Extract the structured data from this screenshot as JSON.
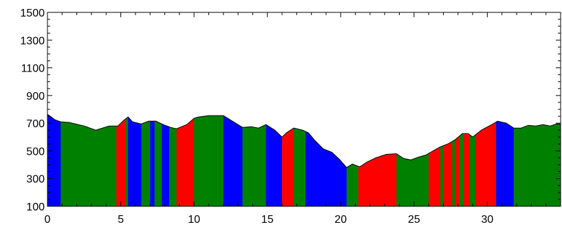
{
  "chart_data": {
    "type": "area",
    "title": "",
    "xlabel": "",
    "ylabel": "",
    "xlim": [
      0,
      35
    ],
    "ylim": [
      100,
      1500
    ],
    "x_ticks": [
      0,
      5,
      10,
      15,
      20,
      25,
      30
    ],
    "y_ticks": [
      100,
      300,
      500,
      700,
      900,
      1100,
      1300,
      1500
    ],
    "grid": false,
    "legend": "none",
    "colors": {
      "red": "#ff0000",
      "green": "#008000",
      "blue": "#0000ff"
    },
    "profile": {
      "x": [
        0,
        0.2,
        0.5,
        0.9,
        1.5,
        2.5,
        3.3,
        4.2,
        4.8,
        5.2,
        5.5,
        5.8,
        6.4,
        6.9,
        7.4,
        7.9,
        8.4,
        8.8,
        9.5,
        10.0,
        10.3,
        11.0,
        12.0,
        12.6,
        13.3,
        13.9,
        14.4,
        14.9,
        15.5,
        16.0,
        16.3,
        16.8,
        17.4,
        17.8,
        18.2,
        18.8,
        19.4,
        19.9,
        20.4,
        20.8,
        21.3,
        21.8,
        22.4,
        23.1,
        23.8,
        24.3,
        24.8,
        25.3,
        25.8,
        26.3,
        26.8,
        27.3,
        27.8,
        28.3,
        28.7,
        29.0,
        29.6,
        30.3,
        30.7,
        31.3,
        31.8,
        32.3,
        32.8,
        33.3,
        33.8,
        34.3,
        34.7,
        35.0
      ],
      "y": [
        765,
        750,
        725,
        710,
        705,
        680,
        650,
        680,
        680,
        720,
        745,
        710,
        695,
        715,
        715,
        690,
        670,
        660,
        690,
        735,
        745,
        755,
        755,
        715,
        670,
        675,
        665,
        690,
        650,
        600,
        630,
        665,
        650,
        630,
        580,
        515,
        490,
        440,
        380,
        405,
        385,
        420,
        450,
        475,
        480,
        445,
        435,
        455,
        470,
        500,
        530,
        550,
        580,
        625,
        625,
        600,
        650,
        690,
        715,
        700,
        665,
        665,
        685,
        680,
        690,
        680,
        695,
        695
      ]
    },
    "segments": [
      {
        "from": 0.0,
        "to": 0.9,
        "color": "blue"
      },
      {
        "from": 0.9,
        "to": 4.7,
        "color": "green"
      },
      {
        "from": 4.7,
        "to": 5.3,
        "color": "red"
      },
      {
        "from": 5.3,
        "to": 5.5,
        "color": "green"
      },
      {
        "from": 5.5,
        "to": 6.4,
        "color": "blue"
      },
      {
        "from": 6.4,
        "to": 7.0,
        "color": "green"
      },
      {
        "from": 7.0,
        "to": 7.3,
        "color": "blue"
      },
      {
        "from": 7.3,
        "to": 7.8,
        "color": "green"
      },
      {
        "from": 7.8,
        "to": 8.3,
        "color": "blue"
      },
      {
        "from": 8.3,
        "to": 8.8,
        "color": "green"
      },
      {
        "from": 8.8,
        "to": 10.0,
        "color": "red"
      },
      {
        "from": 10.0,
        "to": 12.0,
        "color": "green"
      },
      {
        "from": 12.0,
        "to": 13.3,
        "color": "blue"
      },
      {
        "from": 13.3,
        "to": 14.9,
        "color": "green"
      },
      {
        "from": 14.9,
        "to": 16.0,
        "color": "blue"
      },
      {
        "from": 16.0,
        "to": 16.8,
        "color": "red"
      },
      {
        "from": 16.8,
        "to": 17.6,
        "color": "green"
      },
      {
        "from": 17.6,
        "to": 20.4,
        "color": "blue"
      },
      {
        "from": 20.4,
        "to": 21.2,
        "color": "green"
      },
      {
        "from": 21.2,
        "to": 23.8,
        "color": "red"
      },
      {
        "from": 23.8,
        "to": 26.0,
        "color": "green"
      },
      {
        "from": 26.0,
        "to": 26.8,
        "color": "red"
      },
      {
        "from": 26.8,
        "to": 27.0,
        "color": "green"
      },
      {
        "from": 27.0,
        "to": 27.6,
        "color": "red"
      },
      {
        "from": 27.6,
        "to": 27.8,
        "color": "green"
      },
      {
        "from": 27.8,
        "to": 28.1,
        "color": "red"
      },
      {
        "from": 28.1,
        "to": 28.4,
        "color": "green"
      },
      {
        "from": 28.4,
        "to": 28.8,
        "color": "red"
      },
      {
        "from": 28.8,
        "to": 29.2,
        "color": "green"
      },
      {
        "from": 29.2,
        "to": 30.6,
        "color": "red"
      },
      {
        "from": 30.6,
        "to": 31.8,
        "color": "blue"
      },
      {
        "from": 31.8,
        "to": 35.0,
        "color": "green"
      }
    ]
  }
}
